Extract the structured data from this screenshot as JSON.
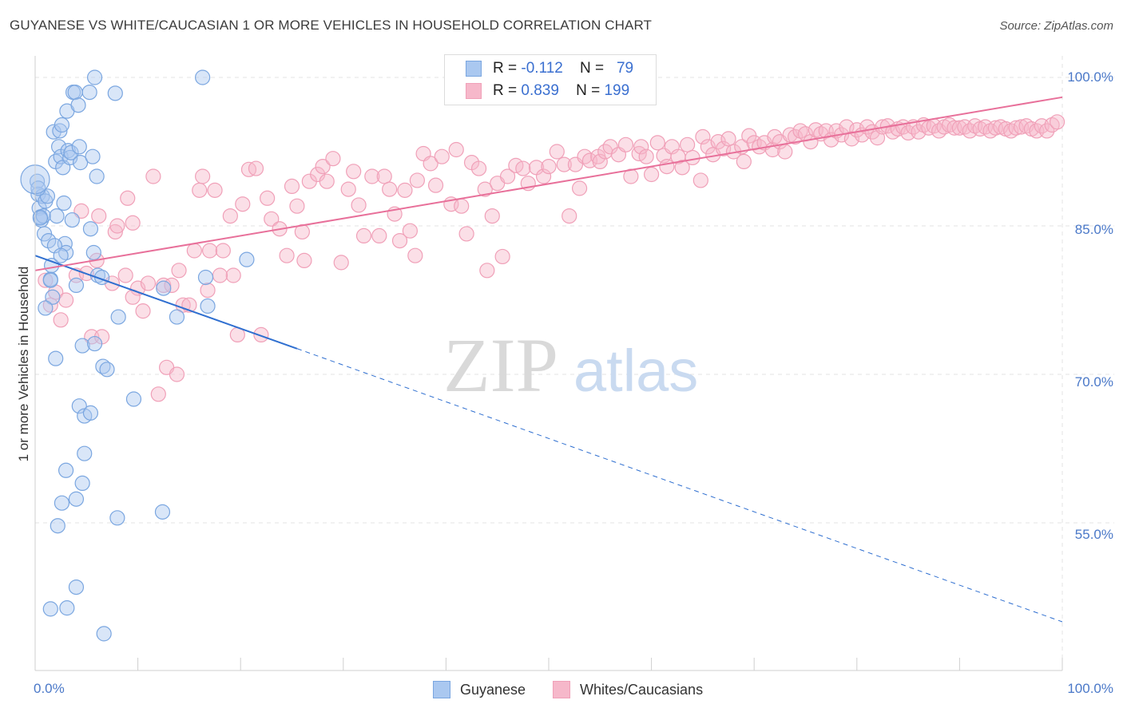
{
  "title": "GUYANESE VS WHITE/CAUCASIAN 1 OR MORE VEHICLES IN HOUSEHOLD CORRELATION CHART",
  "source": "Source: ZipAtlas.com",
  "watermark": {
    "zip": "ZIP",
    "atlas": "atlas"
  },
  "colors": {
    "guyanese_fill": "#aac8f0",
    "guyanese_stroke": "#7aa6e0",
    "guyanese_line": "#2f6fd0",
    "white_fill": "#f6b8ca",
    "white_stroke": "#f0a0b8",
    "white_line": "#e8709a",
    "tick_label": "#4a78c8"
  },
  "legend": {
    "rows": [
      {
        "r_label": "R =",
        "r_value": "-0.112",
        "n_label": "N =",
        "n_value": "79"
      },
      {
        "r_label": "R =",
        "r_value": "0.839",
        "n_label": "N =",
        "n_value": "199"
      }
    ]
  },
  "chart_data": {
    "type": "scatter",
    "title": "GUYANESE VS WHITE/CAUCASIAN 1 OR MORE VEHICLES IN HOUSEHOLD CORRELATION CHART",
    "xlabel": "",
    "ylabel": "1 or more Vehicles in Household",
    "xlim": [
      0,
      100
    ],
    "ylim": [
      40,
      101.5
    ],
    "x_tick_labels": [
      "0.0%",
      "100.0%"
    ],
    "y_ticks": [
      55,
      70,
      85,
      100
    ],
    "y_tick_labels": [
      "55.0%",
      "70.0%",
      "85.0%",
      "100.0%"
    ],
    "grid": true,
    "legend_position": "top-center",
    "series": [
      {
        "name": "Guyanese",
        "r": -0.112,
        "n": 79,
        "trend": {
          "x0": 0,
          "y0": 82.0,
          "x1": 25.5,
          "y1": 72.6,
          "dashed_to_x": 100,
          "dashed_to_y": 45.0
        },
        "points": [
          [
            0.2,
            89.5
          ],
          [
            0.3,
            88.2
          ],
          [
            0.4,
            86.8
          ],
          [
            0.5,
            85.9
          ],
          [
            0.6,
            85.6
          ],
          [
            0.7,
            88.0
          ],
          [
            0.8,
            86.0
          ],
          [
            0.9,
            84.2
          ],
          [
            1.0,
            87.5
          ],
          [
            1.2,
            88.0
          ],
          [
            1.3,
            83.5
          ],
          [
            1.5,
            79.6
          ],
          [
            1.6,
            81.0
          ],
          [
            1.8,
            94.5
          ],
          [
            2.0,
            91.5
          ],
          [
            2.1,
            86.0
          ],
          [
            2.3,
            93.0
          ],
          [
            2.4,
            94.6
          ],
          [
            2.5,
            92.0
          ],
          [
            2.6,
            95.2
          ],
          [
            2.7,
            90.9
          ],
          [
            2.8,
            87.3
          ],
          [
            2.9,
            83.2
          ],
          [
            3.0,
            82.3
          ],
          [
            3.1,
            96.6
          ],
          [
            3.2,
            92.6
          ],
          [
            3.4,
            91.9
          ],
          [
            3.5,
            92.4
          ],
          [
            3.6,
            85.6
          ],
          [
            3.7,
            98.5
          ],
          [
            3.9,
            98.5
          ],
          [
            4.0,
            79.0
          ],
          [
            4.2,
            97.2
          ],
          [
            4.3,
            93.0
          ],
          [
            4.4,
            91.4
          ],
          [
            4.6,
            72.9
          ],
          [
            5.3,
            98.5
          ],
          [
            5.4,
            84.7
          ],
          [
            5.6,
            92.0
          ],
          [
            5.7,
            82.3
          ],
          [
            5.8,
            100.0
          ],
          [
            6.0,
            90.0
          ],
          [
            6.1,
            80.0
          ],
          [
            6.5,
            79.8
          ],
          [
            6.6,
            70.8
          ],
          [
            7.0,
            70.5
          ],
          [
            7.8,
            98.4
          ],
          [
            8.1,
            75.8
          ],
          [
            9.6,
            67.5
          ],
          [
            12.5,
            78.7
          ],
          [
            13.8,
            75.8
          ],
          [
            16.3,
            100.0
          ],
          [
            16.6,
            79.8
          ],
          [
            16.8,
            76.9
          ],
          [
            20.6,
            81.6
          ],
          [
            1.5,
            79.5
          ],
          [
            1.7,
            77.8
          ],
          [
            2.0,
            71.6
          ],
          [
            2.2,
            54.7
          ],
          [
            2.6,
            57.0
          ],
          [
            3.0,
            60.3
          ],
          [
            4.0,
            57.4
          ],
          [
            4.3,
            66.8
          ],
          [
            4.6,
            59.0
          ],
          [
            4.8,
            65.8
          ],
          [
            5.4,
            66.1
          ],
          [
            5.8,
            73.1
          ],
          [
            8.0,
            55.5
          ],
          [
            12.4,
            56.1
          ],
          [
            4.0,
            48.5
          ],
          [
            1.5,
            46.3
          ],
          [
            3.1,
            46.4
          ],
          [
            6.7,
            43.8
          ],
          [
            1.0,
            76.7
          ],
          [
            4.8,
            62.0
          ],
          [
            1.9,
            83.0
          ],
          [
            2.5,
            82.0
          ],
          [
            0.5,
            85.8
          ],
          [
            0.3,
            88.8
          ]
        ]
      },
      {
        "name": "Whites/Caucasians",
        "r": 0.839,
        "n": 199,
        "trend": {
          "x0": 0,
          "y0": 80.5,
          "x1": 100,
          "y1": 98.0
        },
        "points": [
          [
            1.0,
            79.5
          ],
          [
            1.5,
            77.0
          ],
          [
            2.0,
            78.3
          ],
          [
            2.5,
            75.5
          ],
          [
            3.0,
            77.5
          ],
          [
            4.0,
            80.0
          ],
          [
            4.5,
            86.5
          ],
          [
            5.0,
            80.2
          ],
          [
            5.5,
            73.8
          ],
          [
            6.0,
            81.5
          ],
          [
            6.5,
            73.8
          ],
          [
            6.2,
            86.0
          ],
          [
            7.5,
            79.2
          ],
          [
            7.8,
            84.4
          ],
          [
            8.0,
            85.0
          ],
          [
            8.8,
            80.0
          ],
          [
            9.0,
            87.8
          ],
          [
            9.5,
            85.3
          ],
          [
            10.0,
            78.7
          ],
          [
            10.5,
            76.4
          ],
          [
            11.0,
            79.2
          ],
          [
            11.5,
            90.0
          ],
          [
            12.0,
            68.0
          ],
          [
            12.5,
            79.0
          ],
          [
            12.8,
            70.7
          ],
          [
            13.3,
            79.0
          ],
          [
            13.8,
            70.0
          ],
          [
            14.0,
            80.5
          ],
          [
            14.4,
            77.0
          ],
          [
            15.0,
            77.0
          ],
          [
            15.5,
            82.5
          ],
          [
            16.0,
            88.6
          ],
          [
            16.3,
            90.0
          ],
          [
            16.8,
            78.5
          ],
          [
            17.0,
            82.5
          ],
          [
            17.5,
            88.6
          ],
          [
            18.3,
            82.5
          ],
          [
            19.0,
            86.0
          ],
          [
            19.3,
            80.0
          ],
          [
            19.7,
            74.0
          ],
          [
            20.2,
            87.2
          ],
          [
            20.8,
            90.7
          ],
          [
            21.5,
            90.8
          ],
          [
            22.0,
            74.0
          ],
          [
            22.6,
            87.8
          ],
          [
            23.0,
            85.7
          ],
          [
            23.8,
            84.7
          ],
          [
            24.5,
            82.0
          ],
          [
            25.0,
            89.0
          ],
          [
            25.5,
            87.0
          ],
          [
            26.0,
            84.4
          ],
          [
            26.7,
            89.5
          ],
          [
            27.5,
            90.2
          ],
          [
            28.0,
            91.0
          ],
          [
            28.4,
            89.5
          ],
          [
            29.0,
            91.8
          ],
          [
            29.8,
            81.3
          ],
          [
            30.5,
            88.7
          ],
          [
            31.0,
            90.5
          ],
          [
            31.5,
            87.1
          ],
          [
            32.0,
            84.0
          ],
          [
            32.8,
            90.0
          ],
          [
            33.5,
            84.0
          ],
          [
            34.0,
            90.0
          ],
          [
            34.5,
            88.7
          ],
          [
            35.0,
            86.2
          ],
          [
            35.5,
            83.5
          ],
          [
            36.0,
            88.6
          ],
          [
            36.5,
            84.5
          ],
          [
            37.2,
            89.6
          ],
          [
            37.8,
            92.3
          ],
          [
            38.5,
            91.3
          ],
          [
            39.0,
            89.1
          ],
          [
            39.6,
            92.0
          ],
          [
            40.5,
            87.2
          ],
          [
            41.0,
            92.7
          ],
          [
            41.5,
            87.0
          ],
          [
            42.0,
            84.2
          ],
          [
            42.5,
            91.4
          ],
          [
            43.2,
            90.8
          ],
          [
            43.8,
            88.7
          ],
          [
            44.5,
            86.0
          ],
          [
            45.0,
            89.3
          ],
          [
            45.5,
            81.9
          ],
          [
            46.0,
            90.0
          ],
          [
            46.8,
            91.1
          ],
          [
            47.5,
            90.8
          ],
          [
            48.0,
            89.3
          ],
          [
            48.8,
            90.9
          ],
          [
            49.5,
            90.0
          ],
          [
            50.0,
            91.0
          ],
          [
            50.8,
            92.5
          ],
          [
            51.5,
            91.2
          ],
          [
            52.0,
            86.0
          ],
          [
            52.6,
            91.2
          ],
          [
            53.0,
            88.8
          ],
          [
            53.5,
            92.0
          ],
          [
            54.0,
            91.6
          ],
          [
            54.8,
            92.0
          ],
          [
            55.0,
            91.5
          ],
          [
            55.5,
            92.5
          ],
          [
            56.0,
            93.0
          ],
          [
            56.8,
            92.2
          ],
          [
            57.5,
            93.2
          ],
          [
            58.0,
            90.0
          ],
          [
            58.8,
            92.3
          ],
          [
            59.0,
            93.0
          ],
          [
            59.5,
            92.0
          ],
          [
            60.0,
            90.2
          ],
          [
            60.6,
            93.4
          ],
          [
            61.2,
            92.1
          ],
          [
            61.5,
            91.0
          ],
          [
            62.0,
            93.0
          ],
          [
            62.6,
            92.0
          ],
          [
            63.0,
            90.9
          ],
          [
            63.5,
            93.2
          ],
          [
            64.0,
            91.9
          ],
          [
            64.8,
            89.6
          ],
          [
            65.0,
            94.0
          ],
          [
            65.5,
            93.0
          ],
          [
            66.0,
            92.2
          ],
          [
            66.5,
            93.5
          ],
          [
            67.0,
            92.8
          ],
          [
            67.5,
            93.8
          ],
          [
            68.0,
            92.5
          ],
          [
            68.8,
            93.0
          ],
          [
            69.0,
            91.5
          ],
          [
            69.5,
            94.1
          ],
          [
            70.0,
            93.4
          ],
          [
            70.5,
            93.0
          ],
          [
            71.0,
            93.4
          ],
          [
            71.8,
            92.7
          ],
          [
            72.0,
            94.0
          ],
          [
            72.5,
            93.5
          ],
          [
            73.0,
            92.5
          ],
          [
            73.5,
            94.2
          ],
          [
            74.0,
            94.0
          ],
          [
            74.5,
            94.6
          ],
          [
            75.0,
            94.3
          ],
          [
            75.5,
            93.5
          ],
          [
            76.0,
            94.7
          ],
          [
            76.5,
            94.3
          ],
          [
            77.0,
            94.6
          ],
          [
            77.5,
            93.7
          ],
          [
            78.0,
            94.6
          ],
          [
            78.5,
            94.2
          ],
          [
            79.0,
            95.0
          ],
          [
            79.5,
            93.8
          ],
          [
            80.0,
            94.7
          ],
          [
            80.5,
            94.2
          ],
          [
            81.0,
            95.0
          ],
          [
            81.5,
            94.5
          ],
          [
            82.0,
            93.9
          ],
          [
            82.5,
            95.0
          ],
          [
            83.0,
            95.1
          ],
          [
            83.5,
            94.5
          ],
          [
            84.0,
            94.8
          ],
          [
            84.5,
            95.0
          ],
          [
            85.0,
            94.4
          ],
          [
            85.5,
            95.0
          ],
          [
            86.0,
            94.5
          ],
          [
            86.5,
            95.2
          ],
          [
            87.0,
            94.9
          ],
          [
            87.5,
            95.1
          ],
          [
            88.0,
            94.6
          ],
          [
            88.5,
            95.0
          ],
          [
            89.0,
            95.2
          ],
          [
            89.5,
            94.9
          ],
          [
            90.0,
            94.9
          ],
          [
            90.5,
            95.0
          ],
          [
            91.0,
            94.6
          ],
          [
            91.5,
            95.1
          ],
          [
            92.0,
            94.8
          ],
          [
            92.5,
            95.0
          ],
          [
            93.0,
            94.6
          ],
          [
            93.5,
            94.9
          ],
          [
            94.0,
            95.0
          ],
          [
            94.5,
            94.8
          ],
          [
            95.0,
            94.6
          ],
          [
            95.5,
            94.9
          ],
          [
            96.0,
            95.0
          ],
          [
            96.5,
            95.1
          ],
          [
            97.0,
            94.8
          ],
          [
            97.5,
            94.6
          ],
          [
            98.0,
            95.1
          ],
          [
            98.5,
            94.6
          ],
          [
            99.0,
            95.2
          ],
          [
            99.5,
            95.5
          ],
          [
            9.5,
            77.8
          ],
          [
            18.0,
            80.0
          ],
          [
            44.0,
            80.5
          ],
          [
            26.2,
            81.5
          ],
          [
            37.0,
            82.0
          ]
        ]
      }
    ]
  }
}
